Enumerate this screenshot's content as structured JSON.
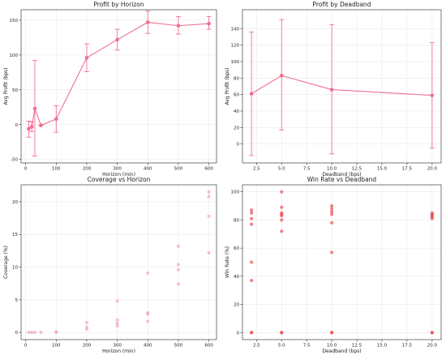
{
  "chart_data": [
    {
      "id": "profit-horizon",
      "type": "line",
      "title": "Profit by Horizon",
      "xlabel": "Horizon (min)",
      "ylabel": "Avg Profit (bps)",
      "xlim": [
        -15,
        625
      ],
      "ylim": [
        -55,
        165
      ],
      "xticks": [
        0,
        100,
        200,
        300,
        400,
        500,
        600
      ],
      "yticks": [
        -50,
        0,
        50,
        100,
        150
      ],
      "grid": true,
      "color": "#ef6f8f",
      "series": [
        {
          "x": [
            10,
            20,
            30,
            50,
            100,
            200,
            300,
            400,
            500,
            600
          ],
          "y": [
            -6,
            -3,
            23,
            -1,
            8,
            96,
            122,
            147,
            142,
            145
          ],
          "err_low": [
            -18,
            -10,
            -45,
            -1,
            -11,
            76,
            107,
            131,
            130,
            137
          ],
          "err_high": [
            5,
            4,
            92,
            -1,
            27,
            116,
            137,
            163,
            155,
            155
          ]
        }
      ]
    },
    {
      "id": "profit-deadband",
      "type": "line",
      "title": "Profit by Deadband",
      "xlabel": "Deadband (bps)",
      "ylabel": "Avg Profit (bps)",
      "xlim": [
        1.1,
        20.9
      ],
      "ylim": [
        -23,
        163
      ],
      "xticks": [
        2.5,
        5.0,
        7.5,
        10.0,
        12.5,
        15.0,
        17.5,
        20.0
      ],
      "xtick_labels": [
        "2.5",
        "5.0",
        "7.5",
        "10.0",
        "12.5",
        "15.0",
        "17.5",
        "20.0"
      ],
      "yticks": [
        0,
        20,
        40,
        60,
        80,
        100,
        120,
        140
      ],
      "grid": true,
      "color": "#ef6f8f",
      "series": [
        {
          "x": [
            2,
            5,
            10,
            20
          ],
          "y": [
            61,
            83,
            66,
            59
          ],
          "err_low": [
            -14,
            17,
            -12,
            -5
          ],
          "err_high": [
            136,
            151,
            145,
            123
          ]
        }
      ]
    },
    {
      "id": "coverage-horizon",
      "type": "scatter",
      "title": "Coverage vs Horizon",
      "xlabel": "Horizon (min)",
      "ylabel": "Coverage (%)",
      "xlim": [
        -15,
        625
      ],
      "ylim": [
        -1.1,
        22.6
      ],
      "xticks": [
        0,
        100,
        200,
        300,
        400,
        500,
        600
      ],
      "yticks": [
        0,
        5,
        10,
        15,
        20
      ],
      "grid": true,
      "color": "#f4a0b4",
      "points": [
        [
          10,
          0
        ],
        [
          20,
          0
        ],
        [
          30,
          0
        ],
        [
          50,
          0
        ],
        [
          100,
          0
        ],
        [
          100,
          0.1
        ],
        [
          200,
          0.5
        ],
        [
          200,
          0.8
        ],
        [
          200,
          1.5
        ],
        [
          300,
          1.0
        ],
        [
          300,
          1.4
        ],
        [
          300,
          1.9
        ],
        [
          300,
          4.8
        ],
        [
          400,
          1.7
        ],
        [
          400,
          2.8
        ],
        [
          400,
          3.0
        ],
        [
          400,
          9.1
        ],
        [
          500,
          7.4
        ],
        [
          500,
          9.6
        ],
        [
          500,
          10.4
        ],
        [
          500,
          13.2
        ],
        [
          600,
          12.2
        ],
        [
          600,
          17.8
        ],
        [
          600,
          20.8
        ],
        [
          600,
          21.5
        ]
      ]
    },
    {
      "id": "winrate-deadband",
      "type": "scatter",
      "title": "Win Rate vs Deadband",
      "xlabel": "Deadband (bps)",
      "ylabel": "Win Rate (%)",
      "xlim": [
        1.1,
        20.9
      ],
      "ylim": [
        -5,
        105
      ],
      "xticks": [
        2.5,
        5.0,
        7.5,
        10.0,
        12.5,
        15.0,
        17.5,
        20.0
      ],
      "xtick_labels": [
        "2.5",
        "5.0",
        "7.5",
        "10.0",
        "12.5",
        "15.0",
        "17.5",
        "20.0"
      ],
      "yticks": [
        0,
        20,
        40,
        60,
        80,
        100
      ],
      "grid": true,
      "color": "#e8424c",
      "points": [
        [
          2,
          0
        ],
        [
          2,
          0
        ],
        [
          2,
          37
        ],
        [
          2,
          50
        ],
        [
          2,
          77
        ],
        [
          2,
          81
        ],
        [
          2,
          85
        ],
        [
          2,
          87
        ],
        [
          5,
          0
        ],
        [
          5,
          0
        ],
        [
          5,
          72
        ],
        [
          5,
          80
        ],
        [
          5,
          83
        ],
        [
          5,
          84
        ],
        [
          5,
          85
        ],
        [
          5,
          89
        ],
        [
          5,
          100
        ],
        [
          10,
          0
        ],
        [
          10,
          0
        ],
        [
          10,
          57
        ],
        [
          10,
          78
        ],
        [
          10,
          84
        ],
        [
          10,
          86
        ],
        [
          10,
          88
        ],
        [
          10,
          90
        ],
        [
          20,
          0
        ],
        [
          20,
          0
        ],
        [
          20,
          81
        ],
        [
          20,
          82
        ],
        [
          20,
          83
        ],
        [
          20,
          84
        ],
        [
          20,
          85
        ]
      ]
    }
  ]
}
